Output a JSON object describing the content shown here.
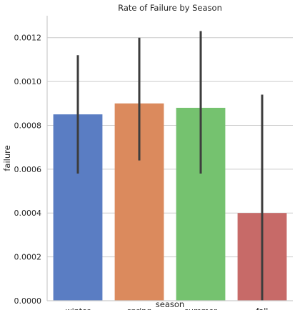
{
  "chart_data": {
    "type": "bar",
    "title": "Rate of Failure by Season",
    "xlabel": "season",
    "ylabel": "failure",
    "categories": [
      "winter",
      "spring",
      "summer",
      "fall"
    ],
    "values": [
      0.00085,
      0.0009,
      0.00088,
      0.0004
    ],
    "error_low": [
      0.00058,
      0.00064,
      0.00058,
      0.0
    ],
    "error_high": [
      0.00112,
      0.0012,
      0.00123,
      0.00094
    ],
    "colors": [
      "#5a7dc3",
      "#db8a5d",
      "#75c26f",
      "#c76a68"
    ],
    "ylim": [
      0,
      0.0013
    ],
    "yticks": [
      0,
      0.0002,
      0.0004,
      0.0006,
      0.0008,
      0.001,
      0.0012
    ],
    "ytick_labels": [
      "0.0000",
      "0.0002",
      "0.0004",
      "0.0006",
      "0.0008",
      "0.0010",
      "0.0012"
    ],
    "grid": "y",
    "legend": "none"
  }
}
